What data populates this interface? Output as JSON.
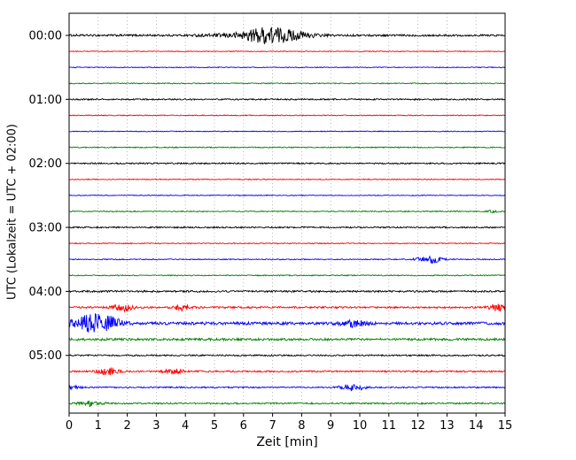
{
  "axes": {
    "xlabel": "Zeit  [min]",
    "ylabel": "UTC (Lokalzeit = UTC + 02:00)"
  },
  "chart_data": {
    "type": "line",
    "subtype": "seismogram_dayplot",
    "title": "",
    "xlabel": "Zeit  [min]",
    "ylabel": "UTC (Lokalzeit = UTC + 02:00)",
    "x_range": [
      0,
      15
    ],
    "x_ticks": [
      0,
      1,
      2,
      3,
      4,
      5,
      6,
      7,
      8,
      9,
      10,
      11,
      12,
      13,
      14,
      15
    ],
    "y_tick_labels": [
      "00:00",
      "01:00",
      "02:00",
      "03:00",
      "04:00",
      "05:00"
    ],
    "minutes_per_row": 15,
    "grid": {
      "vertical": true,
      "style": "dotted",
      "color": "#aaaaaa"
    },
    "color_cycle": [
      "#000000",
      "#ff0000",
      "#0000ff",
      "#008000"
    ],
    "rows": [
      {
        "label": "00:00",
        "show_label": true,
        "color": "#000000",
        "noise": 1.1,
        "events": [
          {
            "t": 5.5,
            "amp": 1.2,
            "dur": 1.5
          },
          {
            "t": 6.4,
            "amp": 2.5,
            "dur": 0.9
          },
          {
            "t": 7.0,
            "amp": 7.5,
            "dur": 1.1
          },
          {
            "t": 7.9,
            "amp": 2.2,
            "dur": 1.0
          }
        ]
      },
      {
        "label": "00:15",
        "show_label": false,
        "color": "#ff0000",
        "noise": 0.45,
        "events": []
      },
      {
        "label": "00:30",
        "show_label": false,
        "color": "#0000ff",
        "noise": 0.45,
        "events": []
      },
      {
        "label": "00:45",
        "show_label": false,
        "color": "#008000",
        "noise": 0.55,
        "events": []
      },
      {
        "label": "01:00",
        "show_label": true,
        "color": "#000000",
        "noise": 0.8,
        "events": []
      },
      {
        "label": "01:15",
        "show_label": false,
        "color": "#ff0000",
        "noise": 0.5,
        "events": []
      },
      {
        "label": "01:30",
        "show_label": false,
        "color": "#0000ff",
        "noise": 0.45,
        "events": []
      },
      {
        "label": "01:45",
        "show_label": false,
        "color": "#008000",
        "noise": 0.6,
        "events": []
      },
      {
        "label": "02:00",
        "show_label": true,
        "color": "#000000",
        "noise": 0.8,
        "events": []
      },
      {
        "label": "02:15",
        "show_label": false,
        "color": "#ff0000",
        "noise": 0.5,
        "events": []
      },
      {
        "label": "02:30",
        "show_label": false,
        "color": "#0000ff",
        "noise": 0.45,
        "events": []
      },
      {
        "label": "02:45",
        "show_label": false,
        "color": "#008000",
        "noise": 0.6,
        "events": [
          {
            "t": 14.55,
            "amp": 1.3,
            "dur": 0.25
          }
        ]
      },
      {
        "label": "03:00",
        "show_label": true,
        "color": "#000000",
        "noise": 0.8,
        "events": []
      },
      {
        "label": "03:15",
        "show_label": false,
        "color": "#ff0000",
        "noise": 0.55,
        "events": []
      },
      {
        "label": "03:30",
        "show_label": false,
        "color": "#0000ff",
        "noise": 0.55,
        "events": [
          {
            "t": 12.4,
            "amp": 4.5,
            "dur": 0.55
          }
        ]
      },
      {
        "label": "03:45",
        "show_label": false,
        "color": "#008000",
        "noise": 0.6,
        "events": []
      },
      {
        "label": "04:00",
        "show_label": true,
        "color": "#000000",
        "noise": 1.0,
        "events": []
      },
      {
        "label": "04:15",
        "show_label": false,
        "color": "#ff0000",
        "noise": 1.0,
        "events": [
          {
            "t": 1.85,
            "amp": 4.8,
            "dur": 0.5
          },
          {
            "t": 3.9,
            "amp": 3.2,
            "dur": 0.4
          },
          {
            "t": 14.8,
            "amp": 4.2,
            "dur": 0.5
          }
        ]
      },
      {
        "label": "04:30",
        "show_label": false,
        "color": "#0000ff",
        "noise": 1.6,
        "events": [
          {
            "t": 0.75,
            "amp": 8.5,
            "dur": 0.9
          },
          {
            "t": 1.4,
            "amp": 4.5,
            "dur": 0.6
          },
          {
            "t": 9.8,
            "amp": 3.2,
            "dur": 0.55
          }
        ]
      },
      {
        "label": "04:45",
        "show_label": false,
        "color": "#008000",
        "noise": 1.3,
        "events": []
      },
      {
        "label": "05:00",
        "show_label": true,
        "color": "#000000",
        "noise": 0.85,
        "events": []
      },
      {
        "label": "05:15",
        "show_label": false,
        "color": "#ff0000",
        "noise": 0.9,
        "events": [
          {
            "t": 1.35,
            "amp": 4.2,
            "dur": 0.5
          },
          {
            "t": 3.6,
            "amp": 2.8,
            "dur": 0.45
          }
        ]
      },
      {
        "label": "05:30",
        "show_label": false,
        "color": "#0000ff",
        "noise": 0.75,
        "events": [
          {
            "t": 0.2,
            "amp": 1.8,
            "dur": 0.3
          },
          {
            "t": 9.75,
            "amp": 3.8,
            "dur": 0.6
          }
        ]
      },
      {
        "label": "05:45",
        "show_label": false,
        "color": "#008000",
        "noise": 0.85,
        "events": [
          {
            "t": 0.75,
            "amp": 2.8,
            "dur": 0.5
          }
        ]
      }
    ]
  }
}
